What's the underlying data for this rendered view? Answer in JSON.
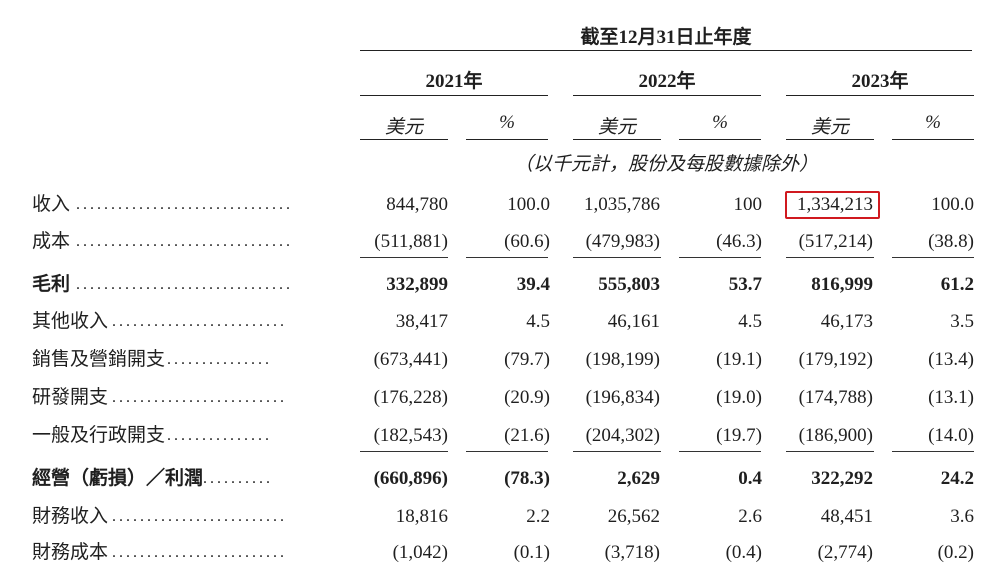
{
  "header": {
    "period_title": "截至12月31日止年度",
    "years": [
      "2021年",
      "2022年",
      "2023年"
    ],
    "unit_usd": "美元",
    "unit_pct": "%",
    "note": "（以千元計，股份及每股數據除外）"
  },
  "rows": [
    {
      "label": "收入",
      "dots": "...............................",
      "v2021": "844,780",
      "p2021": "100.0",
      "v2022": "1,035,786",
      "p2022": "100",
      "v2023": "1,334,213",
      "p2023": "100.0"
    },
    {
      "label": "成本",
      "dots": "...............................",
      "v2021": "(511,881)",
      "p2021": "(60.6)",
      "v2022": "(479,983)",
      "p2022": "(46.3)",
      "v2023": "(517,214)",
      "p2023": "(38.8)"
    },
    {
      "label": "毛利",
      "dots": "...............................",
      "v2021": "332,899",
      "p2021": "39.4",
      "v2022": "555,803",
      "p2022": "53.7",
      "v2023": "816,999",
      "p2023": "61.2"
    },
    {
      "label": "其他收入",
      "dots": ".........................",
      "v2021": "38,417",
      "p2021": "4.5",
      "v2022": "46,161",
      "p2022": "4.5",
      "v2023": "46,173",
      "p2023": "3.5"
    },
    {
      "label": "銷售及營銷開支",
      "dots": "...............",
      "v2021": "(673,441)",
      "p2021": "(79.7)",
      "v2022": "(198,199)",
      "p2022": "(19.1)",
      "v2023": "(179,192)",
      "p2023": "(13.4)"
    },
    {
      "label": "研發開支",
      "dots": ".........................",
      "v2021": "(176,228)",
      "p2021": "(20.9)",
      "v2022": "(196,834)",
      "p2022": "(19.0)",
      "v2023": "(174,788)",
      "p2023": "(13.1)"
    },
    {
      "label": "一般及行政開支",
      "dots": "...............",
      "v2021": "(182,543)",
      "p2021": "(21.6)",
      "v2022": "(204,302)",
      "p2022": "(19.7)",
      "v2023": "(186,900)",
      "p2023": "(14.0)"
    },
    {
      "label": "經營（虧損）／利潤",
      "dots": "...........",
      "v2021": "(660,896)",
      "p2021": "(78.3)",
      "v2022": "2,629",
      "p2022": "0.4",
      "v2023": "322,292",
      "p2023": "24.2"
    },
    {
      "label": "財務收入",
      "dots": ".........................",
      "v2021": "18,816",
      "p2021": "2.2",
      "v2022": "26,562",
      "p2022": "2.6",
      "v2023": "48,451",
      "p2023": "3.6"
    },
    {
      "label": "財務成本",
      "dots": ".........................",
      "v2021": "(1,042)",
      "p2021": "(0.1)",
      "v2022": "(3,718)",
      "p2022": "(0.4)",
      "v2023": "(2,774)",
      "p2023": "(0.2)"
    }
  ],
  "highlight_color": "#d0191f"
}
